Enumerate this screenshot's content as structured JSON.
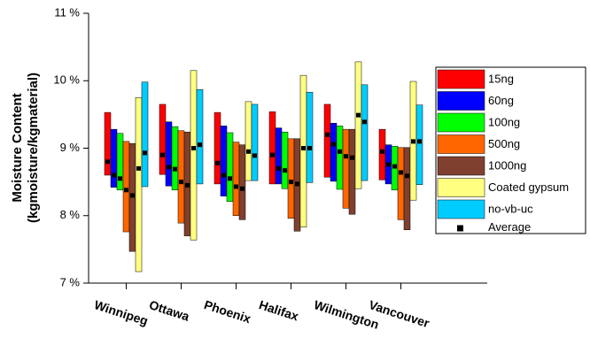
{
  "chart_data": {
    "type": "range-bar",
    "y_label_lines": [
      "Moisture Content",
      "(kgmoisture/kgmaterial)"
    ],
    "categories": [
      "Winnipeg",
      "Ottawa",
      "Phoenix",
      "Halifax",
      "Wilmington",
      "Vancouver"
    ],
    "ylim": [
      7,
      11
    ],
    "yticks": [
      {
        "value": 7,
        "label": "7 %"
      },
      {
        "value": 8,
        "label": "8 %"
      },
      {
        "value": 9,
        "label": "9 %"
      },
      {
        "value": 10,
        "label": "10 %"
      },
      {
        "value": 11,
        "label": "11 %"
      }
    ],
    "average_label": "Average",
    "average_color": "#000000",
    "series": [
      {
        "name": "15ng",
        "color": "#ff0000",
        "low": [
          8.6,
          8.61,
          8.47,
          8.47,
          8.57,
          8.53
        ],
        "high": [
          9.53,
          9.65,
          9.53,
          9.54,
          9.65,
          9.28
        ],
        "average": [
          8.8,
          8.9,
          8.78,
          8.9,
          9.2,
          8.95
        ]
      },
      {
        "name": "60ng",
        "color": "#0000ff",
        "low": [
          8.42,
          8.44,
          8.29,
          8.47,
          8.51,
          8.47
        ],
        "high": [
          9.28,
          9.39,
          9.33,
          9.3,
          9.37,
          9.05
        ],
        "average": [
          8.6,
          8.72,
          8.6,
          8.7,
          9.06,
          8.76
        ]
      },
      {
        "name": "100ng",
        "color": "#00ff00",
        "low": [
          8.38,
          8.38,
          8.21,
          8.4,
          8.39,
          8.38
        ],
        "high": [
          9.22,
          9.32,
          9.23,
          9.24,
          9.33,
          9.03
        ],
        "average": [
          8.55,
          8.69,
          8.55,
          8.67,
          8.95,
          8.73
        ]
      },
      {
        "name": "500ng",
        "color": "#ff6600",
        "low": [
          7.76,
          7.89,
          8.0,
          7.96,
          8.11,
          7.94
        ],
        "high": [
          9.1,
          9.26,
          9.09,
          9.14,
          9.28,
          9.01
        ],
        "average": [
          8.38,
          8.5,
          8.43,
          8.5,
          8.88,
          8.64
        ]
      },
      {
        "name": "1000ng",
        "color": "#804030",
        "low": [
          7.47,
          7.7,
          7.94,
          7.77,
          8.02,
          7.79
        ],
        "high": [
          9.07,
          9.24,
          9.05,
          9.14,
          9.28,
          9.01
        ],
        "average": [
          8.3,
          8.45,
          8.4,
          8.47,
          8.86,
          8.59
        ]
      },
      {
        "name": "Coated gypsum",
        "color": "#ffff80",
        "low": [
          7.17,
          7.64,
          8.52,
          7.83,
          8.4,
          8.23
        ],
        "high": [
          9.75,
          10.15,
          9.69,
          10.08,
          10.28,
          9.99
        ],
        "average": [
          8.7,
          9.0,
          8.95,
          9.0,
          9.49,
          9.1
        ]
      },
      {
        "name": "no-vb-uc",
        "color": "#00ccff",
        "low": [
          8.43,
          8.47,
          8.52,
          8.49,
          8.52,
          8.46
        ],
        "high": [
          9.98,
          9.87,
          9.65,
          9.83,
          9.94,
          9.64
        ],
        "average": [
          8.93,
          9.05,
          8.89,
          9.0,
          9.39,
          9.1
        ]
      }
    ]
  }
}
